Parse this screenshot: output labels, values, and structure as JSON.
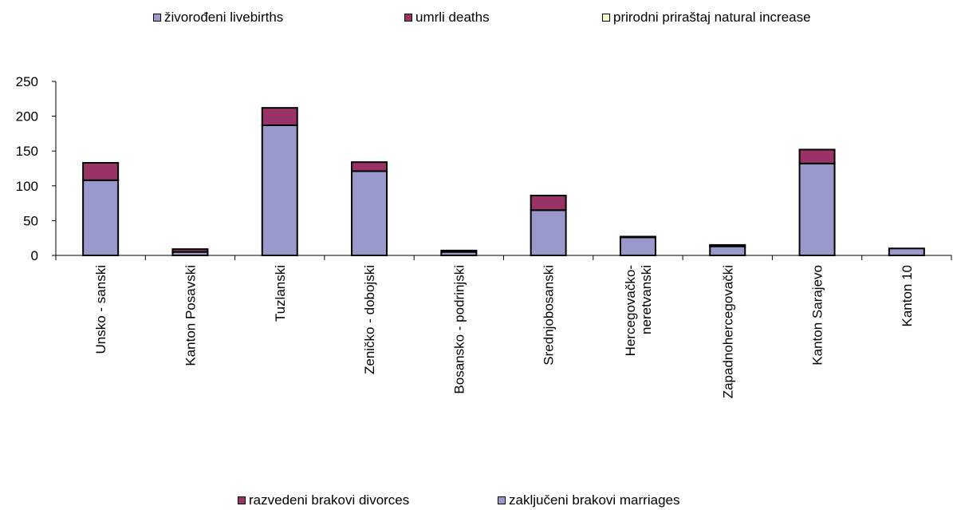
{
  "legend_top": [
    {
      "label": "živorođeni livebirths",
      "color": "#9999cc"
    },
    {
      "label": "umrli deaths",
      "color": "#993366"
    },
    {
      "label": "prirodni priraštaj natural increase",
      "color": "#ffffcc"
    }
  ],
  "legend_bottom": [
    {
      "label": "razvedeni brakovi divorces",
      "color": "#993366"
    },
    {
      "label": "zaključeni brakovi marriages",
      "color": "#9999cc"
    }
  ],
  "chart_data": {
    "type": "bar",
    "stacked": true,
    "categories": [
      [
        "Unsko - sanski"
      ],
      [
        "Kanton Posavski"
      ],
      [
        "Tuzlanski"
      ],
      [
        "Zeničko - dobojski"
      ],
      [
        "Bosansko - podrinjski"
      ],
      [
        "Srednjobosanski"
      ],
      [
        "Hercegovačko-",
        "neretvanski"
      ],
      [
        "Zapadnohercegovački"
      ],
      [
        "Kanton Sarajevo"
      ],
      [
        "Kanton 10"
      ]
    ],
    "series": [
      {
        "name": "zaključeni brakovi marriages",
        "color": "#9999cc",
        "values": [
          108,
          5,
          187,
          121,
          5,
          65,
          26,
          13,
          132,
          10
        ]
      },
      {
        "name": "razvedeni brakovi divorces",
        "color": "#993366",
        "values": [
          25,
          4,
          25,
          13,
          2,
          21,
          1,
          2,
          20,
          0
        ]
      }
    ],
    "ylim": [
      0,
      250
    ],
    "yticks": [
      0,
      50,
      100,
      150,
      200,
      250
    ],
    "grid": false
  }
}
